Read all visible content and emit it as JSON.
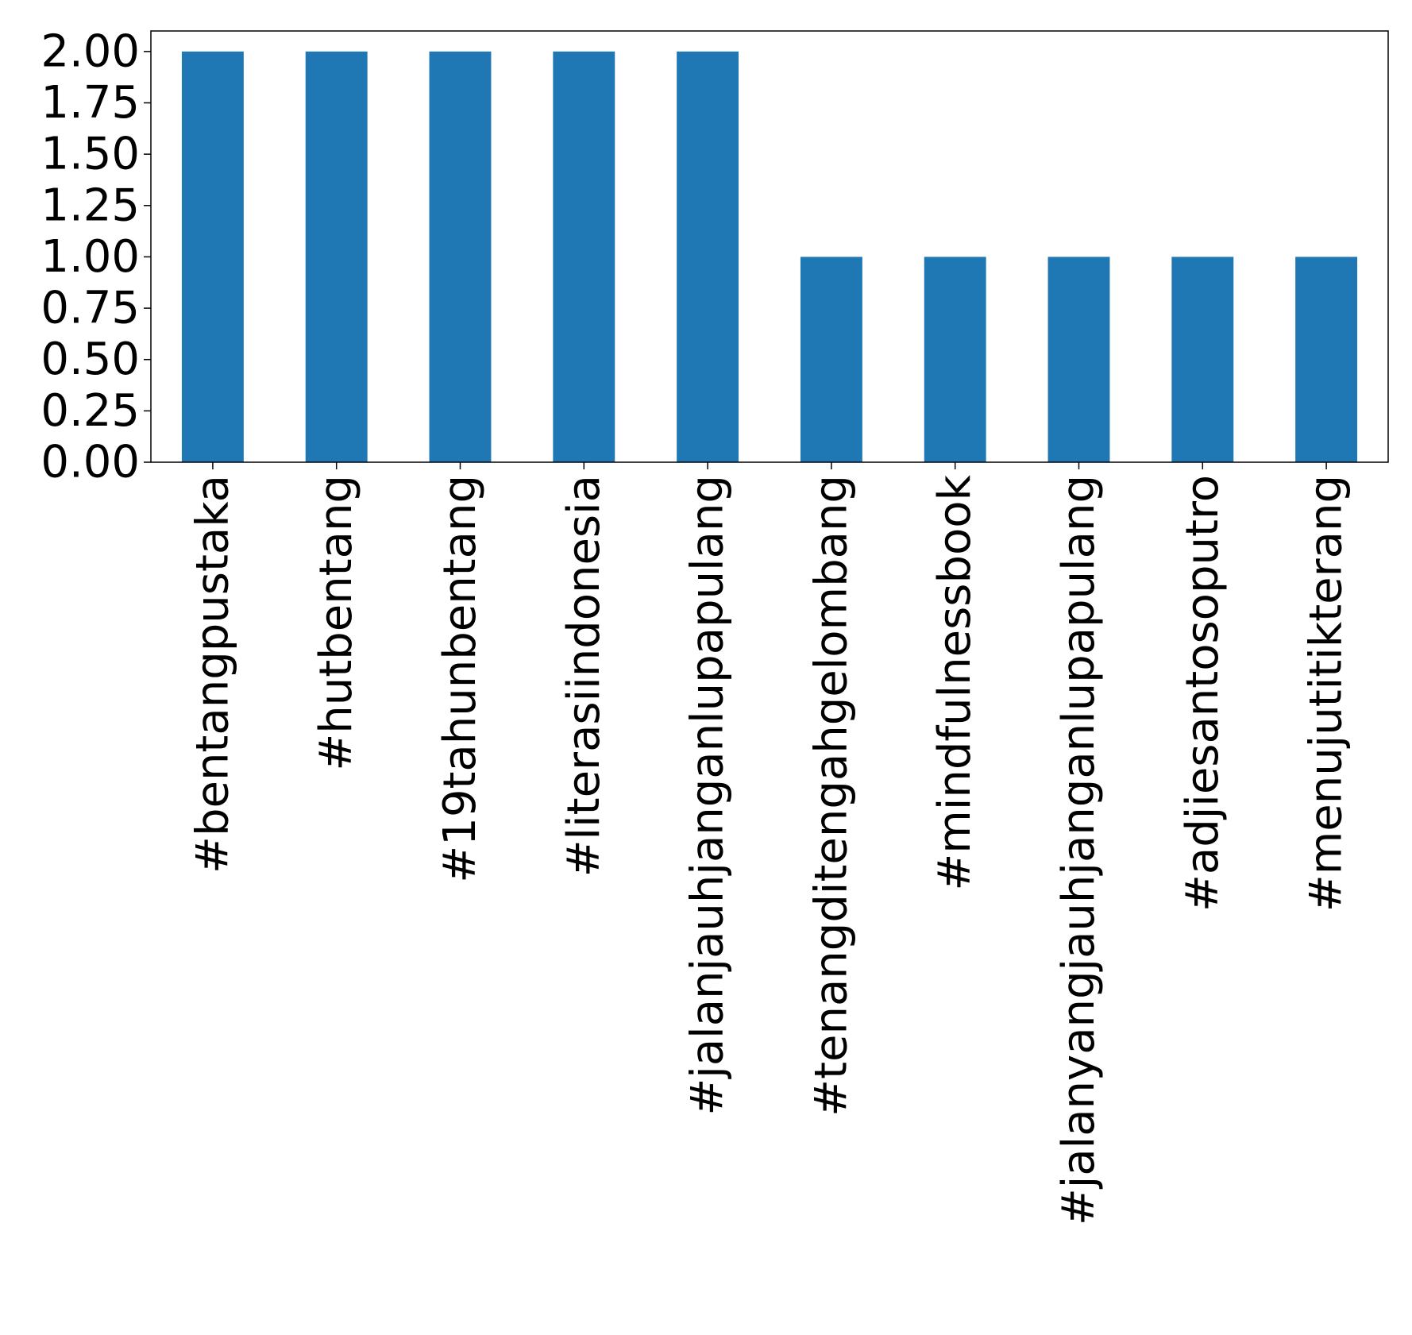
{
  "chart_data": {
    "type": "bar",
    "title": "",
    "xlabel": "",
    "ylabel": "",
    "categories": [
      "#bentangpustaka",
      "#hutbentang",
      "#19tahunbentang",
      "#literasiindonesia",
      "#jalanjauhjanganlupapulang",
      "#tenangditengahgelombang",
      "#mindfulnessbook",
      "#jalanyangjauhjanganlupapulang",
      "#adjiesantosoputro",
      "#menujutitikterang"
    ],
    "values": [
      2,
      2,
      2,
      2,
      2,
      1,
      1,
      1,
      1,
      1
    ],
    "ylim": [
      0,
      2.1
    ],
    "yticks": [
      "0.00",
      "0.25",
      "0.50",
      "0.75",
      "1.00",
      "1.25",
      "1.50",
      "1.75",
      "2.00"
    ],
    "bar_color": "#1f77b4",
    "grid": false,
    "legend": "none"
  }
}
